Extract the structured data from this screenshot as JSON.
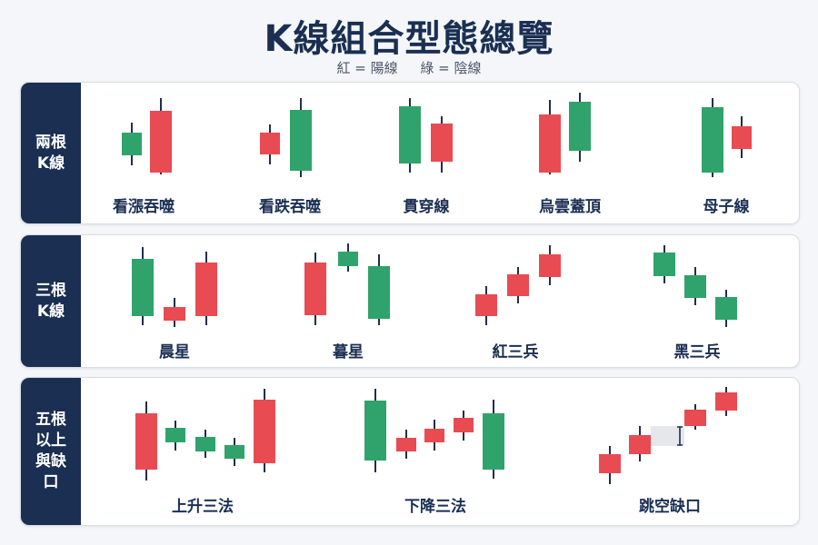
{
  "title": "K線組合型態總覽",
  "legend": {
    "red": "紅 = 陽線",
    "green": "綠 = 陰線"
  },
  "colors": {
    "red": "#e94b52",
    "green": "#2fa36b",
    "wick": "#1f2f4a",
    "gap": "#e5e7eb"
  },
  "rows": [
    {
      "label_lines": [
        "兩根",
        "K線"
      ],
      "patterns": [
        {
          "name": "看漲吞噬"
        },
        {
          "name": "看跌吞噬"
        },
        {
          "name": "貫穿線"
        },
        {
          "name": "烏雲蓋頂"
        },
        {
          "name": "母子線"
        }
      ]
    },
    {
      "label_lines": [
        "三根",
        "K線"
      ],
      "patterns": [
        {
          "name": "晨星"
        },
        {
          "name": "暮星"
        },
        {
          "name": "紅三兵"
        },
        {
          "name": "黑三兵"
        }
      ]
    },
    {
      "label_lines": [
        "五根",
        "以上",
        "與缺口"
      ],
      "patterns": [
        {
          "name": "上升三法"
        },
        {
          "name": "下降三法"
        },
        {
          "name": "跳空缺口"
        }
      ]
    }
  ]
}
